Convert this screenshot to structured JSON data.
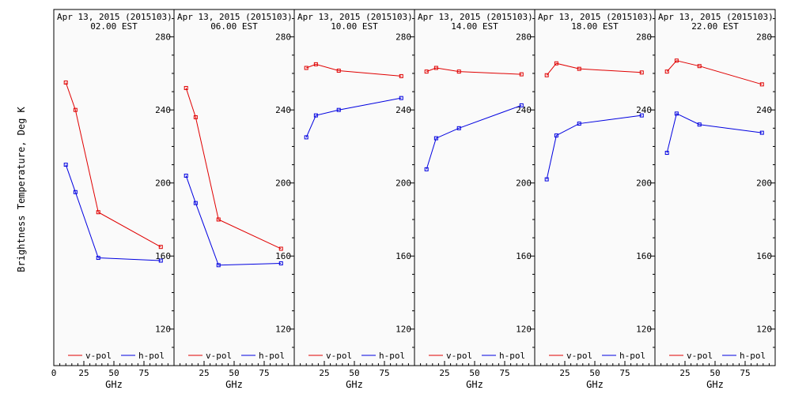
{
  "chart_data": {
    "type": "line",
    "ylabel": "Brightness Temperature, Deg K",
    "xlabel": "GHz",
    "ylim": [
      100,
      295
    ],
    "xlim": [
      0,
      100
    ],
    "yticks": [
      120,
      160,
      200,
      240,
      280
    ],
    "xticks": [
      0,
      25,
      50,
      75
    ],
    "legend": {
      "position": "bottom",
      "entries": [
        "v-pol",
        "h-pol"
      ]
    },
    "colors": {
      "v-pol": "#e00000",
      "h-pol": "#0000e0"
    },
    "x": [
      10,
      18,
      37,
      89
    ],
    "panels": [
      {
        "title": "Apr 13, 2015 (2015103)",
        "subtitle": "02.00 EST",
        "series": [
          {
            "name": "v-pol",
            "values": [
              255,
              240,
              184,
              165
            ]
          },
          {
            "name": "h-pol",
            "values": [
              210,
              195,
              159,
              157.5
            ]
          }
        ]
      },
      {
        "title": "Apr 13, 2015 (2015103)",
        "subtitle": "06.00 EST",
        "series": [
          {
            "name": "v-pol",
            "values": [
              252,
              236,
              180,
              164
            ]
          },
          {
            "name": "h-pol",
            "values": [
              204,
              189,
              155,
              156
            ]
          }
        ]
      },
      {
        "title": "Apr 13, 2015 (2015103)",
        "subtitle": "10.00 EST",
        "series": [
          {
            "name": "v-pol",
            "values": [
              263,
              265,
              261.5,
              258.5
            ]
          },
          {
            "name": "h-pol",
            "values": [
              225,
              237,
              240,
              246.5
            ]
          }
        ]
      },
      {
        "title": "Apr 13, 2015 (2015103)",
        "subtitle": "14.00 EST",
        "series": [
          {
            "name": "v-pol",
            "values": [
              261,
              263,
              261,
              259.5
            ]
          },
          {
            "name": "h-pol",
            "values": [
              207.5,
              224.5,
              230,
              242.5
            ]
          }
        ]
      },
      {
        "title": "Apr 13, 2015 (2015103)",
        "subtitle": "18.00 EST",
        "series": [
          {
            "name": "v-pol",
            "values": [
              259,
              265.5,
              262.5,
              260.5
            ]
          },
          {
            "name": "h-pol",
            "values": [
              202,
              226,
              232.5,
              237
            ]
          }
        ]
      },
      {
        "title": "Apr 13, 2015 (2015103)",
        "subtitle": "22.00 EST",
        "series": [
          {
            "name": "v-pol",
            "values": [
              261,
              267,
              264,
              254
            ]
          },
          {
            "name": "h-pol",
            "values": [
              216.5,
              238,
              232,
              227.5
            ]
          }
        ]
      }
    ]
  }
}
